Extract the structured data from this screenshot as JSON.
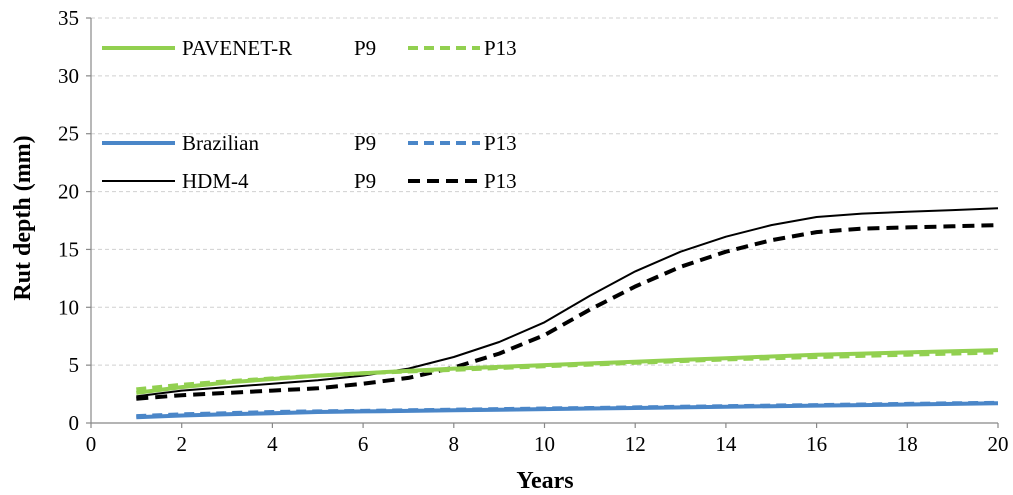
{
  "chart_data": {
    "type": "line",
    "title": "",
    "xlabel": "Years",
    "ylabel": "Rut depth (mm)",
    "xlim": [
      0,
      20
    ],
    "ylim": [
      0,
      35
    ],
    "xticks": [
      0,
      2,
      4,
      6,
      8,
      10,
      12,
      14,
      16,
      18,
      20
    ],
    "yticks": [
      0,
      5,
      10,
      15,
      20,
      25,
      30,
      35
    ],
    "grid": "horizontal dashed",
    "legend_position": "top-left",
    "legend_rows": [
      {
        "model": "PAVENET-R",
        "p9_label": "P9",
        "p13_label": "P13",
        "p9_series": 0,
        "p13_series": 1
      },
      {
        "model": "Brazilian",
        "p9_label": "P9",
        "p13_label": "P13",
        "p9_series": 2,
        "p13_series": 3
      },
      {
        "model": "HDM-4",
        "p9_label": "P9",
        "p13_label": "P13",
        "p9_series": 4,
        "p13_series": 5
      }
    ],
    "x": [
      1,
      2,
      3,
      4,
      5,
      6,
      7,
      8,
      9,
      10,
      11,
      12,
      13,
      14,
      15,
      16,
      17,
      18,
      19,
      20
    ],
    "series": [
      {
        "name": "PAVENET-R P9",
        "color": "#92D050",
        "style": "solid",
        "width": 4,
        "values": [
          2.6,
          3.1,
          3.5,
          3.8,
          4.1,
          4.3,
          4.5,
          4.7,
          4.85,
          5.0,
          5.15,
          5.3,
          5.45,
          5.6,
          5.75,
          5.9,
          6.0,
          6.1,
          6.2,
          6.3
        ]
      },
      {
        "name": "PAVENET-R P13",
        "color": "#92D050",
        "style": "dashed",
        "width": 4,
        "values": [
          2.9,
          3.3,
          3.6,
          3.85,
          4.1,
          4.3,
          4.45,
          4.6,
          4.75,
          4.9,
          5.05,
          5.2,
          5.35,
          5.5,
          5.6,
          5.7,
          5.8,
          5.9,
          6.0,
          6.1
        ]
      },
      {
        "name": "Brazilian P9",
        "color": "#4A86C8",
        "style": "solid",
        "width": 4,
        "values": [
          0.5,
          0.65,
          0.75,
          0.85,
          0.95,
          1.0,
          1.05,
          1.1,
          1.15,
          1.2,
          1.25,
          1.3,
          1.35,
          1.4,
          1.45,
          1.5,
          1.55,
          1.6,
          1.65,
          1.7
        ]
      },
      {
        "name": "Brazilian P13",
        "color": "#4A86C8",
        "style": "dashed",
        "width": 4,
        "values": [
          0.6,
          0.75,
          0.85,
          0.95,
          1.0,
          1.05,
          1.1,
          1.15,
          1.2,
          1.25,
          1.3,
          1.35,
          1.4,
          1.45,
          1.5,
          1.55,
          1.6,
          1.65,
          1.7,
          1.75
        ]
      },
      {
        "name": "HDM-4 P9",
        "color": "#000000",
        "style": "solid",
        "width": 2,
        "values": [
          2.3,
          2.8,
          3.1,
          3.4,
          3.7,
          4.1,
          4.7,
          5.7,
          7.0,
          8.7,
          11.0,
          13.1,
          14.8,
          16.1,
          17.1,
          17.8,
          18.1,
          18.25,
          18.4,
          18.55
        ]
      },
      {
        "name": "HDM-4 P13",
        "color": "#000000",
        "style": "dashed",
        "width": 4,
        "values": [
          2.1,
          2.4,
          2.6,
          2.8,
          3.0,
          3.4,
          3.9,
          4.8,
          6.0,
          7.6,
          9.8,
          11.8,
          13.5,
          14.8,
          15.8,
          16.5,
          16.8,
          16.9,
          17.0,
          17.1
        ]
      }
    ]
  }
}
